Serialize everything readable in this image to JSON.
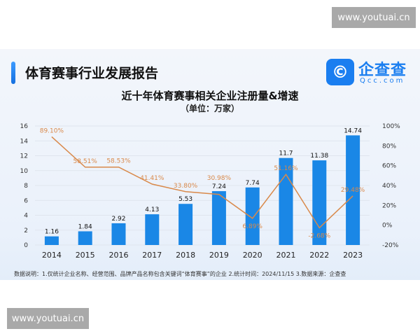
{
  "watermark": "www.youtuai.cn",
  "report_title": "体育赛事行业发展报告",
  "logo": {
    "text": "企查查",
    "sub": "Qcc.com",
    "icon": "qcc-logo-icon",
    "color": "#1a7ef0"
  },
  "note": "数据说明：1.仅统计企业名称、经营范围、品牌产品名称包含关键词“体育赛事”的企业  2.统计时间：2024/11/15   3.数据来源：企查查",
  "chart_data": {
    "type": "bar+line",
    "title": "近十年体育赛事相关企业注册量&增速",
    "subtitle": "（单位：万家）",
    "categories": [
      "2014",
      "2015",
      "2016",
      "2017",
      "2018",
      "2019",
      "2020",
      "2021",
      "2022",
      "2023"
    ],
    "series": [
      {
        "type": "bar",
        "axis": "left",
        "color": "#1a87e6",
        "values": [
          1.16,
          1.84,
          2.92,
          4.13,
          5.53,
          7.24,
          7.74,
          11.7,
          11.38,
          14.74
        ],
        "labels": [
          "1.16",
          "1.84",
          "2.92",
          "4.13",
          "5.53",
          "7.24",
          "7.74",
          "11.7",
          "11.38",
          "14.74"
        ]
      },
      {
        "type": "line",
        "axis": "right",
        "color": "#d9894a",
        "values": [
          89.1,
          58.51,
          58.53,
          41.41,
          33.8,
          30.98,
          6.89,
          51.16,
          -2.68,
          29.48
        ],
        "labels": [
          "89.10%",
          "58.51%",
          "58.53%",
          "41.41%",
          "33.80%",
          "30.98%",
          "6.89%",
          "51.16%",
          "-2.68%",
          "29.48%"
        ]
      }
    ],
    "y_left": {
      "range": [
        0,
        16
      ],
      "ticks": [
        "0",
        "2",
        "4",
        "6",
        "8",
        "10",
        "12",
        "14",
        "16"
      ]
    },
    "y_right": {
      "range": [
        -20,
        100
      ],
      "ticks": [
        "-20%",
        "0%",
        "20%",
        "40%",
        "60%",
        "80%",
        "100%"
      ]
    },
    "grid": true
  }
}
